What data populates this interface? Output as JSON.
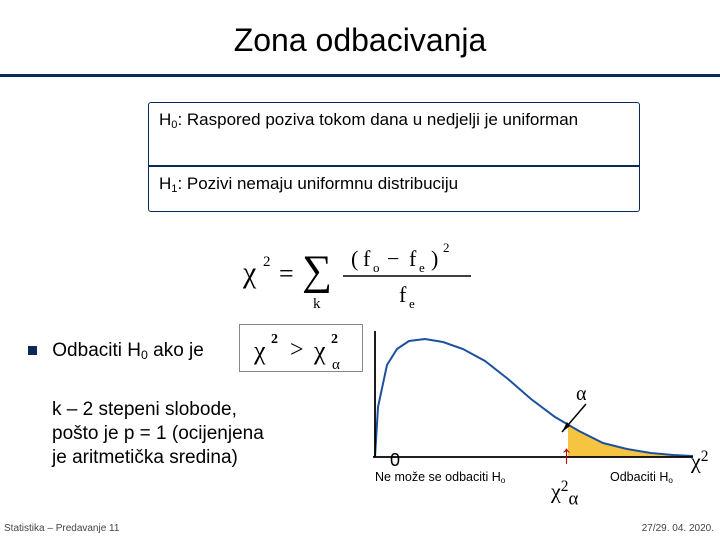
{
  "title": "Zona odbacivanja",
  "hypotheses": {
    "h0_prefix": "H",
    "h0_sub": "0",
    "h0_text": ": Raspored poziva tokom dana u nedjelji   je uniforman",
    "h1_prefix": "H",
    "h1_sub": "1",
    "h1_text": ":  Pozivi nemaju uniformnu distribuciju"
  },
  "formula": {
    "chi": "χ",
    "eq": "=",
    "sigma_sub": "k",
    "num_a": "f",
    "num_a_sub": "o",
    "minus": "−",
    "num_b": "f",
    "num_b_sub": "e",
    "den": "f",
    "den_sub": "e",
    "sq": "2"
  },
  "bullet": {
    "text_a": "Odbaciti H",
    "sub": "0",
    "text_b": " ako je"
  },
  "condition": {
    "chi": "χ",
    "gt": ">",
    "alpha": "α"
  },
  "degrees": {
    "line1": "k – 2 stepeni slobode,",
    "line2": "pošto je p = 1 (ocijenjena",
    "line3": "je aritmetička sredina)"
  },
  "chart": {
    "type": "density-curve",
    "axis_color": "#000000",
    "curve_color": "#1e50a0",
    "curve_width": 2,
    "fill_color": "#f5c542",
    "xlim": [
      0,
      320
    ],
    "ylim": [
      0,
      120
    ],
    "baseline_y": 120,
    "curve_points": [
      [
        2,
        120
      ],
      [
        5,
        70
      ],
      [
        14,
        28
      ],
      [
        24,
        12
      ],
      [
        36,
        4
      ],
      [
        52,
        2
      ],
      [
        70,
        5
      ],
      [
        90,
        12
      ],
      [
        112,
        24
      ],
      [
        135,
        42
      ],
      [
        158,
        62
      ],
      [
        182,
        80
      ],
      [
        206,
        94
      ],
      [
        230,
        106
      ],
      [
        254,
        112
      ],
      [
        278,
        116
      ],
      [
        300,
        118
      ],
      [
        320,
        119
      ]
    ],
    "alpha_region_start_x": 195,
    "crit_x": 195,
    "alpha_label": "α",
    "zero_label": "0",
    "chi2_axis_label": "χ",
    "chi2_axis_sup": "2",
    "chi2_crit_label": "χ",
    "chi2_crit_sup": "2",
    "chi2_crit_sub": "α",
    "ne_moze": "Ne može se odbaciti H",
    "ne_moze_sub": "o",
    "odbaciti": "Odbaciti H",
    "odbaciti_sub": "o"
  },
  "footer": {
    "left": "Statistika – Predavanje 11",
    "right": "27/29. 04. 2020."
  },
  "colors": {
    "navy": "#0a2a5a",
    "red_arrow": "#c00000"
  }
}
